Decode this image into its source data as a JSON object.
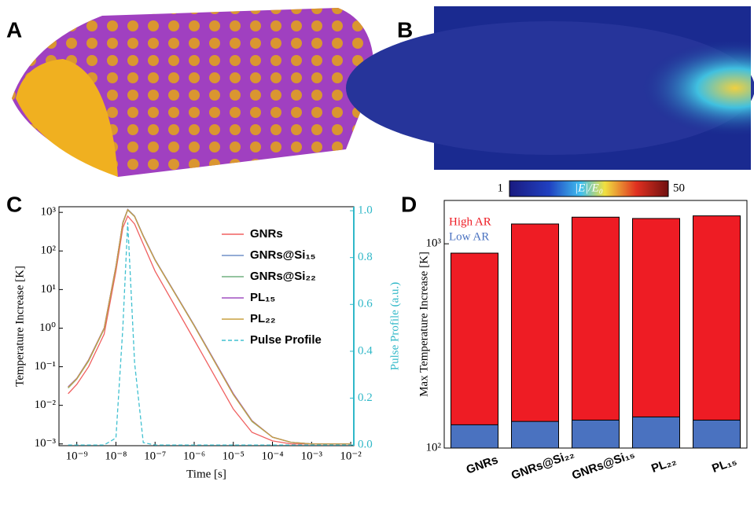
{
  "panel_labels": [
    "A",
    "B",
    "C",
    "D"
  ],
  "colorbar": {
    "min_label": "1",
    "label": "|E|/E₀",
    "max_label": "50"
  },
  "chart_data": [
    {
      "type": "line",
      "xlabel": "Time [s]",
      "ylabel": "Temperature Increase [K]",
      "y2label": "Pulse Profile (a.u.)",
      "log_x": true,
      "log_y": true,
      "x": [
        6e-10,
        1e-09,
        2e-09,
        5e-09,
        1e-08,
        1.5e-08,
        2e-08,
        3e-08,
        5e-08,
        1e-07,
        1e-06,
        1e-05,
        3e-05,
        0.0001,
        0.0003,
        0.001,
        0.01
      ],
      "series": [
        {
          "name": "GNRs",
          "color": "#f06060",
          "values": [
            0.02,
            0.035,
            0.1,
            0.7,
            30,
            400,
            800,
            500,
            150,
            30,
            0.5,
            0.008,
            0.002,
            0.0012,
            0.001,
            0.001,
            0.001
          ]
        },
        {
          "name": "GNRs@Si₁₅",
          "color": "#7090c8",
          "values": [
            0.03,
            0.05,
            0.15,
            1.0,
            40,
            550,
            1200,
            800,
            250,
            60,
            1.2,
            0.02,
            0.004,
            0.0015,
            0.0011,
            0.001,
            0.001
          ]
        },
        {
          "name": "GNRs@Si₂₂",
          "color": "#70b080",
          "values": [
            0.028,
            0.048,
            0.14,
            0.95,
            38,
            520,
            1150,
            780,
            240,
            58,
            1.15,
            0.019,
            0.0038,
            0.0015,
            0.0011,
            0.001,
            0.001
          ]
        },
        {
          "name": "PL₁₅",
          "color": "#a050c0",
          "values": [
            0.03,
            0.05,
            0.15,
            1.0,
            40,
            540,
            1180,
            790,
            245,
            59,
            1.18,
            0.02,
            0.004,
            0.0015,
            0.0011,
            0.001,
            0.001
          ]
        },
        {
          "name": "PL₂₂",
          "color": "#c8a040",
          "values": [
            0.029,
            0.049,
            0.145,
            0.98,
            39,
            530,
            1170,
            785,
            242,
            58,
            1.16,
            0.019,
            0.0039,
            0.0015,
            0.0011,
            0.001,
            0.001
          ]
        },
        {
          "name": "Pulse Profile",
          "color": "#40c0d0",
          "dashed": true,
          "axis": "y2",
          "values": [
            0,
            0,
            0,
            0,
            0.03,
            0.5,
            0.95,
            0.35,
            0.01,
            0,
            0,
            0,
            0,
            0,
            0,
            0,
            0
          ]
        }
      ],
      "xlim": [
        3.5e-10,
        0.012
      ],
      "ylim": [
        0.0009,
        1400
      ],
      "y2lim": [
        -0.003,
        1.017
      ],
      "xticks": [
        {
          "value": 1e-09,
          "label": "10⁻⁹"
        },
        {
          "value": 1e-08,
          "label": "10⁻⁸"
        },
        {
          "value": 1e-07,
          "label": "10⁻⁷"
        },
        {
          "value": 1e-06,
          "label": "10⁻⁶"
        },
        {
          "value": 1e-05,
          "label": "10⁻⁵"
        },
        {
          "value": 0.0001,
          "label": "10⁻⁴"
        },
        {
          "value": 0.001,
          "label": "10⁻³"
        },
        {
          "value": 0.01,
          "label": "10⁻²"
        }
      ],
      "yticks": [
        {
          "value": 0.001,
          "label": "10⁻³"
        },
        {
          "value": 0.01,
          "label": "10⁻²"
        },
        {
          "value": 0.1,
          "label": "10⁻¹"
        },
        {
          "value": 1,
          "label": "10⁰"
        },
        {
          "value": 10,
          "label": "10¹"
        },
        {
          "value": 100,
          "label": "10²"
        },
        {
          "value": 1000,
          "label": "10³"
        }
      ],
      "y2ticks": [
        {
          "value": 0,
          "label": "0.0"
        },
        0.2,
        0.4,
        0.6,
        0.8,
        {
          "value": 1,
          "label": "1.0"
        }
      ],
      "y2color": "#30b8c8"
    },
    {
      "type": "bar",
      "ylabel": "Max Temperature Increase [K]",
      "log_y": true,
      "categories": [
        "GNRs",
        "GNRs@Si₂₂",
        "GNRs@Si₁₅",
        "PL₂₂",
        "PL₁₅"
      ],
      "series": [
        {
          "name": "High AR",
          "color": "#ee1c24",
          "values": [
            900,
            1250,
            1350,
            1330,
            1370
          ]
        },
        {
          "name": "Low AR",
          "color": "#4a72c0",
          "values": [
            130,
            135,
            137,
            142,
            137
          ]
        }
      ],
      "ylim": [
        100,
        1630
      ],
      "yticks": [
        {
          "value": 100,
          "label": "10²"
        },
        {
          "value": 1000,
          "label": "10³"
        }
      ]
    }
  ]
}
